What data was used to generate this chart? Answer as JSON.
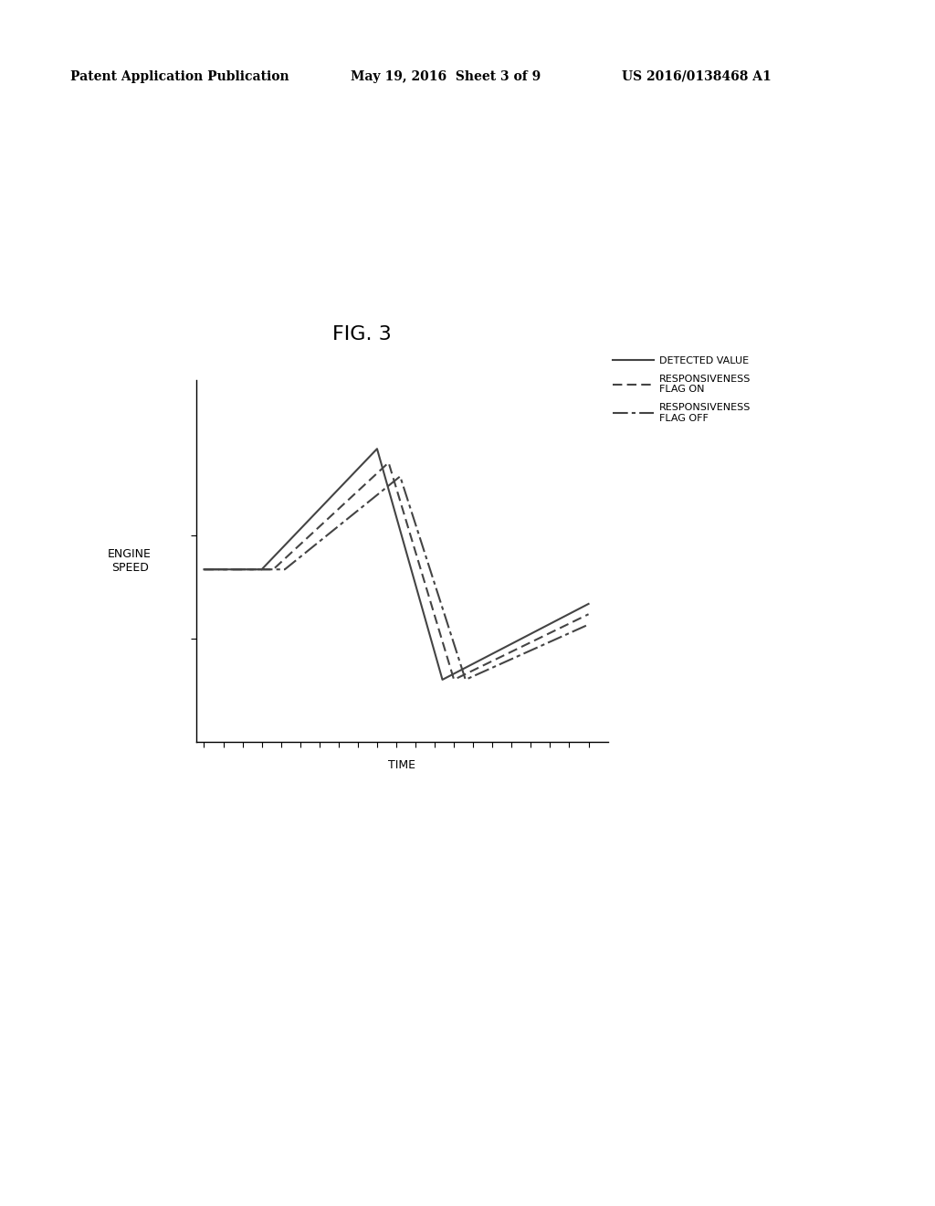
{
  "title": "FIG. 3",
  "xlabel": "TIME",
  "ylabel": "ENGINE\nSPEED",
  "header_left": "Patent Application Publication",
  "header_mid": "May 19, 2016  Sheet 3 of 9",
  "header_right": "US 2016/0138468 A1",
  "line_color": "#444444",
  "background_color": "#ffffff",
  "fig_title_fontsize": 16,
  "axis_label_fontsize": 9,
  "legend_fontsize": 8,
  "header_fontsize": 10,
  "x_det": [
    0,
    1.5,
    4.5,
    6.2,
    10.0
  ],
  "y_det": [
    5.0,
    5.0,
    8.5,
    1.8,
    4.0
  ],
  "x_on": [
    0,
    1.8,
    4.8,
    6.5,
    10.0
  ],
  "y_on": [
    5.0,
    5.0,
    8.1,
    1.8,
    3.7
  ],
  "x_off": [
    0,
    2.1,
    5.1,
    6.8,
    10.0
  ],
  "y_off": [
    5.0,
    5.0,
    7.7,
    1.8,
    3.4
  ]
}
